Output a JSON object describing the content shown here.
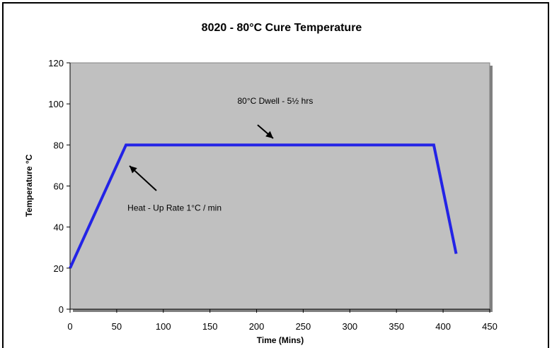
{
  "chart_data": {
    "type": "line",
    "title": "8020 - 80°C Cure Temperature",
    "xlabel": "Time (Mins)",
    "ylabel": "Temperature °C",
    "xlim": [
      0,
      450
    ],
    "ylim": [
      0,
      120
    ],
    "x_ticks": [
      "0",
      "50",
      "100",
      "150",
      "200",
      "250",
      "300",
      "350",
      "400",
      "450"
    ],
    "y_ticks": [
      "0",
      "20",
      "40",
      "60",
      "80",
      "100",
      "120"
    ],
    "grid": false,
    "series": [
      {
        "x": [
          0,
          60,
          390,
          414
        ],
        "y": [
          20,
          80,
          80,
          27
        ],
        "color": "#2323e6"
      }
    ],
    "annotations": [
      {
        "text": "80°C Dwell - 5½ hrs",
        "x": 220,
        "y": 100
      },
      {
        "text": "Heat - Up Rate 1°C / min",
        "x": 112,
        "y": 48
      }
    ],
    "plot_background": "#c0c0c0"
  }
}
